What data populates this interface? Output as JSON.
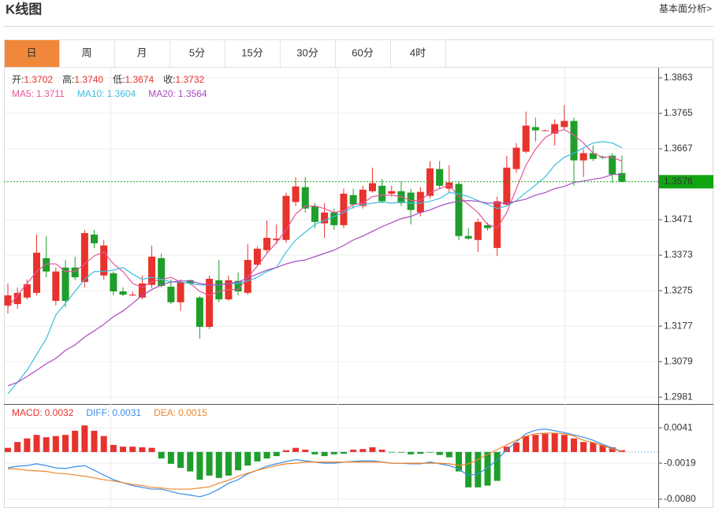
{
  "header": {
    "title": "K线图",
    "link": "基本面分析>"
  },
  "tabs": [
    "日",
    "周",
    "月",
    "5分",
    "15分",
    "30分",
    "60分",
    "4时"
  ],
  "active_tab": 0,
  "chart_data": [
    {
      "type": "candlestick",
      "info": [
        {
          "label": "开:",
          "value": "1.3702"
        },
        {
          "label": "高:",
          "value": "1.3740"
        },
        {
          "label": "低:",
          "value": "1.3674"
        },
        {
          "label": "收:",
          "value": "1.3732"
        }
      ],
      "up_color": "#e8322c",
      "down_color": "#1e9e2a",
      "candles": {
        "open": [
          1.3234,
          1.3238,
          1.3256,
          1.3269,
          1.3365,
          1.3247,
          1.3339,
          1.3339,
          1.3299,
          1.343,
          1.3317,
          1.3323,
          1.3273,
          1.3264,
          1.3256,
          1.3291,
          1.3365,
          1.3286,
          1.3243,
          1.3304,
          1.3256,
          1.3175,
          1.3304,
          1.3251,
          1.3302,
          1.3269,
          1.3347,
          1.3387,
          1.3415,
          1.3415,
          1.352,
          1.3561,
          1.3509,
          1.3461,
          1.3491,
          1.3456,
          1.3539,
          1.3509,
          1.355,
          1.3565,
          1.3543,
          1.355,
          1.3546,
          1.3491,
          1.3537,
          1.3611,
          1.3557,
          1.357,
          1.3426,
          1.3415,
          1.3456,
          1.3393,
          1.3513,
          1.3611,
          1.3659,
          1.3727,
          1.3716,
          1.3709,
          1.3727,
          1.3744,
          1.3635,
          1.3655,
          1.3644,
          1.3648,
          1.36
        ],
        "high": [
          1.3295,
          1.3284,
          1.3306,
          1.343,
          1.3426,
          1.3339,
          1.336,
          1.3369,
          1.3443,
          1.3443,
          1.3415,
          1.3328,
          1.3284,
          1.3273,
          1.3317,
          1.34,
          1.3378,
          1.3306,
          1.3306,
          1.3306,
          1.326,
          1.3317,
          1.336,
          1.3317,
          1.3325,
          1.3404,
          1.3397,
          1.3469,
          1.3458,
          1.3546,
          1.3589,
          1.3589,
          1.3517,
          1.3517,
          1.3502,
          1.3557,
          1.3557,
          1.3565,
          1.3615,
          1.3583,
          1.3565,
          1.3578,
          1.3557,
          1.3561,
          1.3633,
          1.3633,
          1.3622,
          1.3578,
          1.3448,
          1.3474,
          1.3463,
          1.3535,
          1.3648,
          1.3683,
          1.377,
          1.3753,
          1.372,
          1.3748,
          1.3788,
          1.3753,
          1.3666,
          1.3676,
          1.3648,
          1.3655,
          1.3648
        ],
        "low": [
          1.3212,
          1.3225,
          1.3251,
          1.3262,
          1.3312,
          1.3234,
          1.323,
          1.3304,
          1.3284,
          1.3393,
          1.3306,
          1.3262,
          1.326,
          1.326,
          1.3251,
          1.3282,
          1.3284,
          1.3238,
          1.3219,
          1.3291,
          1.3142,
          1.3169,
          1.3243,
          1.3247,
          1.3262,
          1.3264,
          1.3343,
          1.3378,
          1.3404,
          1.3408,
          1.3509,
          1.3491,
          1.3448,
          1.3421,
          1.3443,
          1.3448,
          1.3502,
          1.3502,
          1.3546,
          1.3517,
          1.3535,
          1.3509,
          1.3458,
          1.348,
          1.353,
          1.3557,
          1.3546,
          1.3415,
          1.3415,
          1.3382,
          1.3441,
          1.3371,
          1.3509,
          1.36,
          1.3655,
          1.3687,
          1.3716,
          1.3676,
          1.372,
          1.3565,
          1.3589,
          1.3633,
          1.3639,
          1.3574,
          1.3574
        ],
        "close": [
          1.3262,
          1.3269,
          1.3293,
          1.338,
          1.3328,
          1.3328,
          1.3247,
          1.3312,
          1.3434,
          1.3406,
          1.34,
          1.3273,
          1.3264,
          1.3264,
          1.3295,
          1.3369,
          1.3288,
          1.3243,
          1.3299,
          1.3295,
          1.3175,
          1.3308,
          1.3251,
          1.3304,
          1.3273,
          1.336,
          1.3391,
          1.3421,
          1.3419,
          1.3537,
          1.3563,
          1.3502,
          1.3465,
          1.3491,
          1.3456,
          1.3543,
          1.3513,
          1.3554,
          1.3572,
          1.3522,
          1.355,
          1.3517,
          1.3498,
          1.3548,
          1.3613,
          1.3565,
          1.3574,
          1.3426,
          1.3419,
          1.3465,
          1.3448,
          1.3522,
          1.3615,
          1.367,
          1.3731,
          1.3718,
          1.3718,
          1.3735,
          1.3744,
          1.3635,
          1.3655,
          1.3639,
          1.3642,
          1.3596,
          1.3576
        ]
      },
      "series": [
        {
          "name": "MA5:",
          "legend_value": "1.3711",
          "color": "#e8559a",
          "values": [
            1.323,
            1.3262,
            1.3295,
            1.3328,
            1.3349,
            1.3349,
            1.3328,
            1.3328,
            1.3349,
            1.3371,
            1.3382,
            1.3349,
            1.3328,
            1.3295,
            1.3284,
            1.3299,
            1.3306,
            1.3312,
            1.3299,
            1.3295,
            1.3273,
            1.3262,
            1.3273,
            1.3278,
            1.3278,
            1.3312,
            1.3343,
            1.3378,
            1.3408,
            1.3443,
            1.3487,
            1.3509,
            1.3509,
            1.3502,
            1.3491,
            1.3496,
            1.3513,
            1.3517,
            1.3535,
            1.3539,
            1.3539,
            1.3535,
            1.3524,
            1.3524,
            1.3546,
            1.3557,
            1.3567,
            1.3535,
            1.3513,
            1.3491,
            1.3458,
            1.3448,
            1.3491,
            1.3557,
            1.3622,
            1.3666,
            1.3698,
            1.3714,
            1.372,
            1.3705,
            1.3683,
            1.3655,
            1.3644,
            1.3644,
            1.3633
          ]
        },
        {
          "name": "MA10:",
          "legend_value": "1.3604",
          "color": "#3dbde0",
          "values": [
            1.299,
            1.3022,
            1.3055,
            1.3099,
            1.3142,
            1.3208,
            1.324,
            1.3273,
            1.3306,
            1.3328,
            1.3328,
            1.3332,
            1.3339,
            1.3321,
            1.3306,
            1.3312,
            1.3306,
            1.3299,
            1.3299,
            1.3295,
            1.3291,
            1.3291,
            1.3291,
            1.3295,
            1.3295,
            1.3302,
            1.3312,
            1.3328,
            1.3339,
            1.3382,
            1.3415,
            1.3437,
            1.3458,
            1.3469,
            1.348,
            1.3491,
            1.3506,
            1.3513,
            1.3517,
            1.352,
            1.3517,
            1.352,
            1.3517,
            1.3517,
            1.3522,
            1.353,
            1.3546,
            1.3543,
            1.3535,
            1.3524,
            1.3513,
            1.3502,
            1.3509,
            1.3524,
            1.3546,
            1.3567,
            1.3589,
            1.3622,
            1.3644,
            1.3655,
            1.367,
            1.3683,
            1.3687,
            1.3683,
            1.367
          ]
        },
        {
          "name": "MA20:",
          "legend_value": "1.3564",
          "color": "#a94bc0",
          "values": [
            1.3012,
            1.3022,
            1.3038,
            1.3055,
            1.3073,
            1.3088,
            1.311,
            1.3125,
            1.3147,
            1.3164,
            1.3182,
            1.3203,
            1.3219,
            1.324,
            1.3262,
            1.3278,
            1.3291,
            1.3299,
            1.3302,
            1.3302,
            1.3295,
            1.3291,
            1.3291,
            1.3295,
            1.3299,
            1.331,
            1.3321,
            1.3332,
            1.3339,
            1.3349,
            1.3356,
            1.336,
            1.3369,
            1.3378,
            1.3387,
            1.34,
            1.3415,
            1.3426,
            1.3439,
            1.3452,
            1.3463,
            1.3474,
            1.348,
            1.3491,
            1.3498,
            1.3509,
            1.3517,
            1.3522,
            1.3524,
            1.3522,
            1.3517,
            1.3517,
            1.3517,
            1.3522,
            1.3528,
            1.3539,
            1.3546,
            1.3557,
            1.3563,
            1.3574,
            1.3578,
            1.3583,
            1.3587,
            1.3596,
            1.3596
          ]
        }
      ],
      "ylim": [
        1.2964,
        1.3891
      ],
      "yticks": [
        1.2981,
        1.3079,
        1.3177,
        1.3275,
        1.3373,
        1.3471,
        1.3667,
        1.3765,
        1.3863
      ],
      "last_price": 1.3576,
      "last_price_color": "#12a512",
      "grid": true
    },
    {
      "type": "macd",
      "up_color": "#e8322c",
      "down_color": "#1e9e2a",
      "series": [
        {
          "name": "MACD:",
          "legend_value": "0.0032",
          "kind": "bar",
          "color": "#e8322c",
          "values": [
            0.0007,
            0.0017,
            0.0023,
            0.0029,
            0.0025,
            0.0027,
            0.0029,
            0.0036,
            0.0045,
            0.0036,
            0.0027,
            0.0012,
            0.0009,
            0.0009,
            0.0008,
            0.0007,
            -0.0011,
            -0.002,
            -0.0027,
            -0.0033,
            -0.0047,
            -0.004,
            -0.0044,
            -0.004,
            -0.0031,
            -0.0023,
            -0.0016,
            -0.0011,
            -0.0007,
            0.0003,
            0.0007,
            0.0004,
            -0.0004,
            -0.0007,
            -0.0004,
            -0.0003,
            0.0004,
            0.0005,
            0.0008,
            0.0004,
            -0.0001,
            -0.0001,
            -0.0004,
            -0.0003,
            -0.0001,
            -0.0005,
            -0.0009,
            -0.0033,
            -0.006,
            -0.006,
            -0.0057,
            -0.0049,
            0.0009,
            0.0016,
            0.0027,
            0.0029,
            0.0031,
            0.0032,
            0.0029,
            0.0023,
            0.0017,
            0.0016,
            0.0012,
            0.0008,
            0.0003
          ]
        },
        {
          "name": "DIFF:",
          "legend_value": "0.0031",
          "kind": "line",
          "color": "#3a8ee6",
          "values": [
            -0.0027,
            -0.0024,
            -0.0023,
            -0.002,
            -0.0023,
            -0.0027,
            -0.0028,
            -0.0025,
            -0.0023,
            -0.0031,
            -0.0039,
            -0.0047,
            -0.0052,
            -0.0057,
            -0.006,
            -0.0063,
            -0.0063,
            -0.0067,
            -0.0071,
            -0.0073,
            -0.0076,
            -0.0071,
            -0.0063,
            -0.0053,
            -0.0047,
            -0.0037,
            -0.0031,
            -0.0024,
            -0.002,
            -0.0016,
            -0.0013,
            -0.0015,
            -0.0017,
            -0.0019,
            -0.0019,
            -0.0017,
            -0.0016,
            -0.0015,
            -0.0015,
            -0.0017,
            -0.0019,
            -0.0019,
            -0.002,
            -0.002,
            -0.0017,
            -0.002,
            -0.0023,
            -0.0029,
            -0.004,
            -0.0037,
            -0.0027,
            -0.0013,
            0.0004,
            0.0017,
            0.0031,
            0.0037,
            0.0039,
            0.0036,
            0.0033,
            0.0029,
            0.0025,
            0.002,
            0.0013,
            0.0007,
            0.0001
          ]
        },
        {
          "name": "DEA:",
          "legend_value": "0.0015",
          "kind": "line",
          "color": "#f0842a",
          "values": [
            -0.0028,
            -0.0029,
            -0.0031,
            -0.0032,
            -0.0033,
            -0.0036,
            -0.0037,
            -0.0039,
            -0.0041,
            -0.0044,
            -0.0047,
            -0.0049,
            -0.0052,
            -0.0055,
            -0.0057,
            -0.006,
            -0.0061,
            -0.0063,
            -0.0063,
            -0.0063,
            -0.0061,
            -0.0059,
            -0.0053,
            -0.0048,
            -0.0041,
            -0.0036,
            -0.0031,
            -0.0027,
            -0.0023,
            -0.002,
            -0.0019,
            -0.0017,
            -0.0017,
            -0.0017,
            -0.0017,
            -0.0017,
            -0.0017,
            -0.0017,
            -0.0017,
            -0.0017,
            -0.0019,
            -0.0019,
            -0.0019,
            -0.0019,
            -0.0019,
            -0.0019,
            -0.002,
            -0.0023,
            -0.002,
            -0.0013,
            -0.0004,
            0.0004,
            0.0012,
            0.002,
            0.0027,
            0.0031,
            0.0032,
            0.0032,
            0.0031,
            0.0027,
            0.002,
            0.0016,
            0.0011,
            0.0005,
            0.0001
          ]
        }
      ],
      "ylim": [
        -0.0095,
        0.008
      ],
      "yticks": [
        {
          "value": -0.008,
          "label": "-0.0080"
        },
        -0.0019,
        0.0041
      ],
      "grid": true
    }
  ]
}
